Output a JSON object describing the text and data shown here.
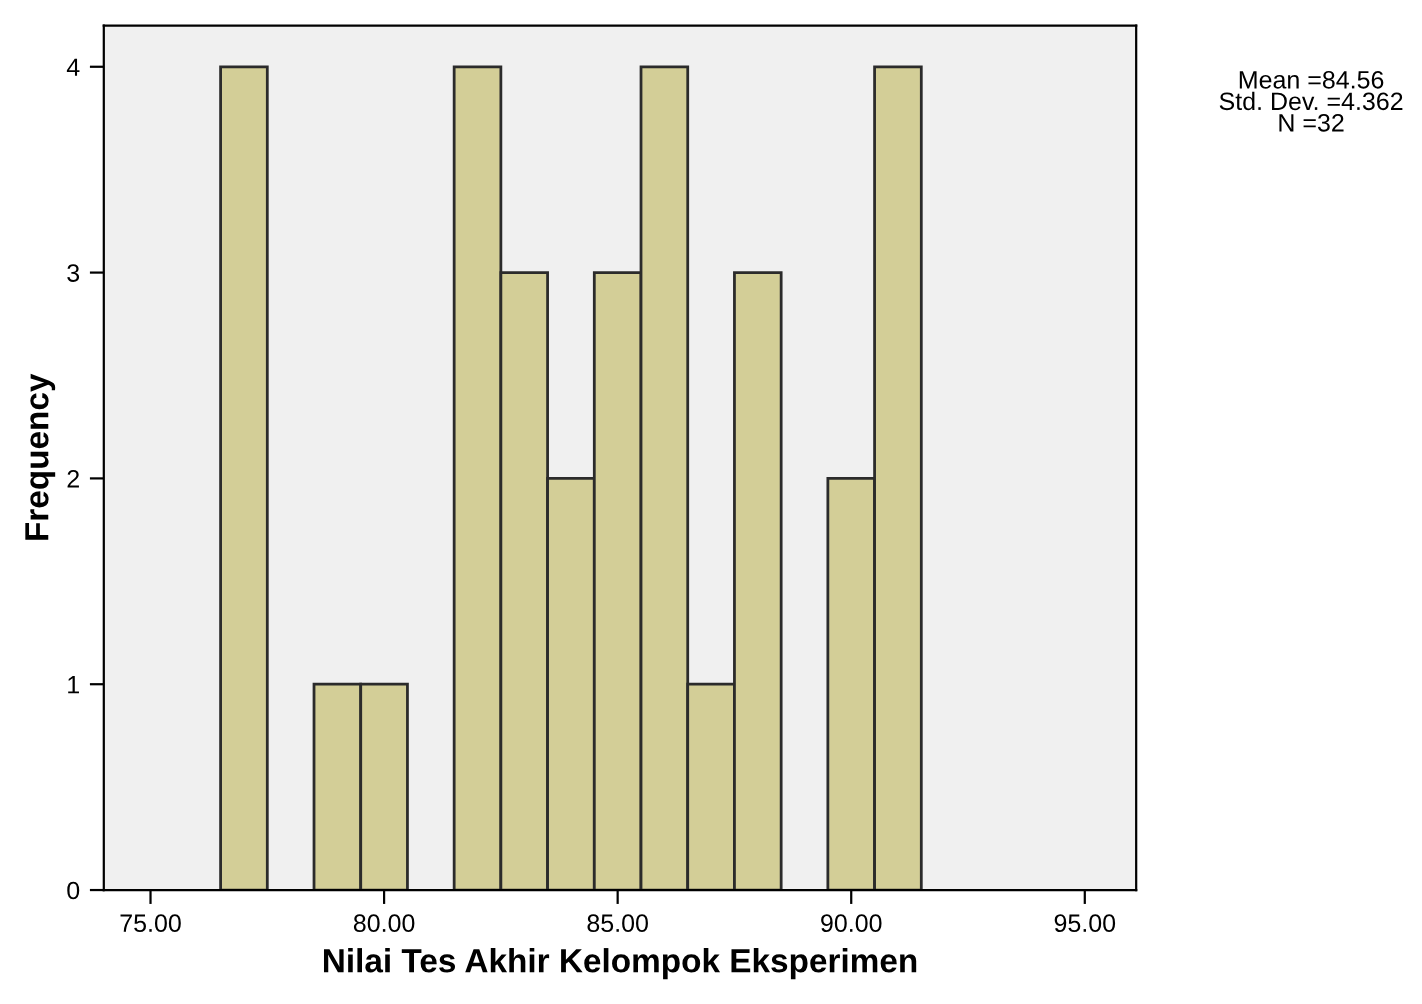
{
  "chart_data": {
    "type": "histogram",
    "xlabel": "Nilai Tes Akhir Kelompok Eksperimen",
    "ylabel": "Frequency",
    "bins": [
      76.5,
      77.5,
      78.5,
      79.5,
      80.5,
      81.5,
      82.5,
      83.5,
      84.5,
      85.5,
      86.5,
      87.5,
      88.5,
      89.5,
      90.5,
      91.5
    ],
    "values": [
      4,
      0,
      1,
      1,
      0,
      4,
      3,
      2,
      3,
      4,
      1,
      3,
      0,
      2,
      4
    ],
    "color": "#d3ce97",
    "xlim": [
      74,
      96.1
    ],
    "xticks": [
      {
        "value": 75,
        "label": "75.00"
      },
      {
        "value": 80,
        "label": "80.00"
      },
      {
        "value": 85,
        "label": "85.00"
      },
      {
        "value": 90,
        "label": "90.00"
      },
      {
        "value": 95,
        "label": "95.00"
      }
    ],
    "ylim": [
      0,
      4.2
    ],
    "yticks": [
      0,
      1,
      2,
      3,
      4
    ],
    "grid": false,
    "annotations": [
      "Mean =84.56\nStd. Dev. =4.362\nN =32"
    ]
  }
}
